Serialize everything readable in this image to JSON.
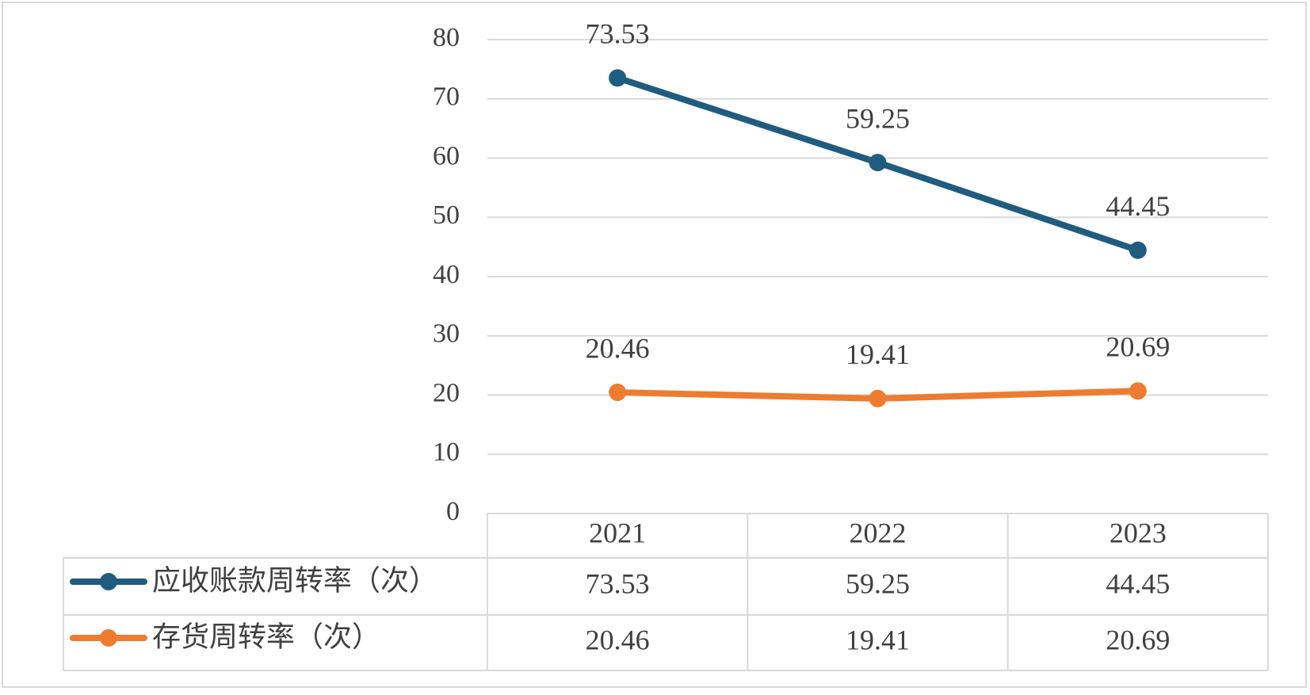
{
  "chart_data": {
    "type": "line",
    "categories": [
      "2021",
      "2022",
      "2023"
    ],
    "series": [
      {
        "name": "应收账款周转率（次）",
        "values": [
          73.53,
          59.25,
          44.45
        ],
        "color": "#1f5c7f"
      },
      {
        "name": "存货周转率（次）",
        "values": [
          20.46,
          19.41,
          20.69
        ],
        "color": "#ed7c31"
      }
    ],
    "y_ticks": [
      "0",
      "10",
      "20",
      "30",
      "40",
      "50",
      "60",
      "70",
      "80"
    ],
    "ylim": [
      0,
      80
    ],
    "grid": true,
    "legend": "data-table-below",
    "data_table": {
      "rows": [
        {
          "label": "应收账款周转率（次）",
          "cells": [
            "73.53",
            "59.25",
            "44.45"
          ]
        },
        {
          "label": "存货周转率（次）",
          "cells": [
            "20.46",
            "19.41",
            "20.69"
          ]
        }
      ]
    },
    "data_labels": [
      [
        "73.53",
        "59.25",
        "44.45"
      ],
      [
        "20.46",
        "19.41",
        "20.69"
      ]
    ],
    "title": "",
    "xlabel": "",
    "ylabel": ""
  },
  "colors": {
    "grid": "#d9d9d9",
    "text": "#404040",
    "frame": "#d9d9d9"
  }
}
